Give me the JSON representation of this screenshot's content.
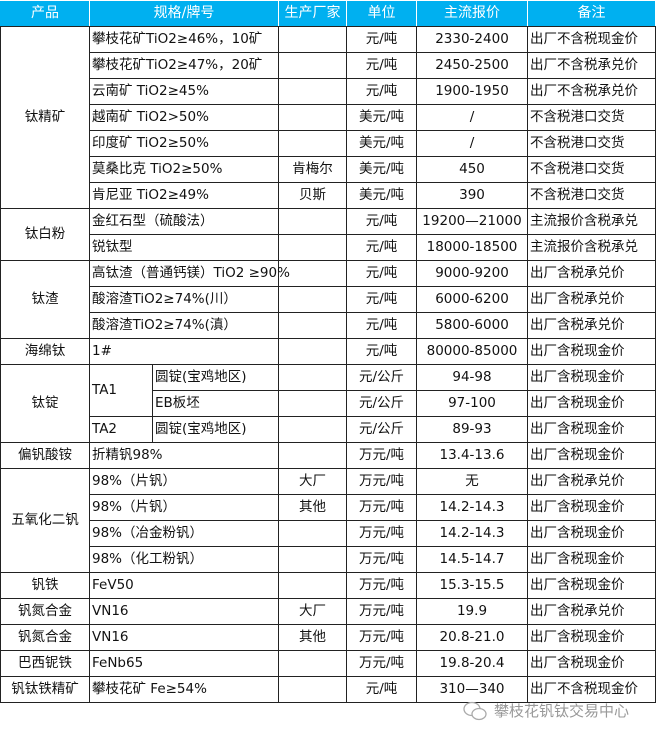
{
  "headers": [
    "产品",
    "规格/牌号",
    "生产厂家",
    "单位",
    "主流报价",
    "备注"
  ],
  "groups": [
    {
      "product": "钛精矿",
      "rows": [
        {
          "spec": "攀枝花矿TiO2≥46%，10矿",
          "maker": "",
          "unit": "元/吨",
          "price": "2330-2400",
          "note": "出厂不含税现金价"
        },
        {
          "spec": "攀枝花矿TiO2≥47%，20矿",
          "maker": "",
          "unit": "元/吨",
          "price": "2450-2500",
          "note": "出厂不含税承兑价"
        },
        {
          "spec": "云南矿 TiO2≥45%",
          "maker": "",
          "unit": "元/吨",
          "price": "1900-1950",
          "note": "出厂不含税承兑价"
        },
        {
          "spec": "越南矿 TiO2>50%",
          "maker": "",
          "unit": "美元/吨",
          "price": "/",
          "note": "不含税港口交货"
        },
        {
          "spec": "印度矿 TiO2≥50%",
          "maker": "",
          "unit": "美元/吨",
          "price": "/",
          "note": "不含税港口交货"
        },
        {
          "spec": "莫桑比克 TiO2≥50%",
          "maker": "肯梅尔",
          "unit": "美元/吨",
          "price": "450",
          "note": "不含税港口交货"
        },
        {
          "spec": "肯尼亚 TiO2≥49%",
          "maker": "贝斯",
          "unit": "美元/吨",
          "price": "390",
          "note": "不含税港口交货"
        }
      ]
    },
    {
      "product": "钛白粉",
      "rows": [
        {
          "spec": "金红石型（硫酸法）",
          "maker": "",
          "unit": "元/吨",
          "price": "19200—21000",
          "note": "主流报价含税承兑"
        },
        {
          "spec": "锐钛型",
          "maker": "",
          "unit": "元/吨",
          "price": "18000-18500",
          "note": "主流报价含税承兑"
        }
      ]
    },
    {
      "product": "钛渣",
      "rows": [
        {
          "spec": "高钛渣（普通钙镁）TiO2 ≥90%",
          "maker": "",
          "unit": "元/吨",
          "price": "9000-9200",
          "note": "出厂含税承兑价"
        },
        {
          "spec": "酸溶渣TiO2≥74%(川）",
          "maker": "",
          "unit": "元/吨",
          "price": "6000-6200",
          "note": "出厂含税承兑价"
        },
        {
          "spec": "酸溶渣TiO2≥74%(滇）",
          "maker": "",
          "unit": "元/吨",
          "price": "5800-6000",
          "note": "出厂含税承兑价"
        }
      ]
    },
    {
      "product": "海绵钛",
      "rows": [
        {
          "spec": "1#",
          "maker": "",
          "unit": "元/吨",
          "price": "80000-85000",
          "note": "出厂含税现金价"
        }
      ]
    },
    {
      "product": "钛锭",
      "subgroups": [
        {
          "grade": "TA1",
          "rows": [
            {
              "spec": "圆锭(宝鸡地区)",
              "maker": "",
              "unit": "元/公斤",
              "price": "94-98",
              "note": "出厂含税现金价"
            },
            {
              "spec": "EB板坯",
              "maker": "",
              "unit": "元/公斤",
              "price": "97-100",
              "note": "出厂含税现金价"
            }
          ]
        },
        {
          "grade": "TA2",
          "rows": [
            {
              "spec": "圆锭(宝鸡地区)",
              "maker": "",
              "unit": "元/公斤",
              "price": "89-93",
              "note": "出厂含税现金价"
            }
          ]
        }
      ]
    },
    {
      "product": "偏钒酸铵",
      "rows": [
        {
          "spec": "折精钒98%",
          "maker": "",
          "unit": "万元/吨",
          "price": "13.4-13.6",
          "note": "出厂含税现金价"
        }
      ]
    },
    {
      "product": "五氧化二钒",
      "rows": [
        {
          "spec": "98%（片钒）",
          "maker": "大厂",
          "unit": "万元/吨",
          "price": "无",
          "note": "出厂含税承兑价"
        },
        {
          "spec": "98%（片钒）",
          "maker": "其他",
          "unit": "万元/吨",
          "price": "14.2-14.3",
          "note": "出厂含税现金价"
        },
        {
          "spec": "98%（冶金粉钒）",
          "maker": "",
          "unit": "万元/吨",
          "price": "14.2-14.3",
          "note": "出厂含税现金价"
        },
        {
          "spec": "98%（化工粉钒）",
          "maker": "",
          "unit": "万元/吨",
          "price": "14.5-14.7",
          "note": "出厂含税现金价"
        }
      ]
    },
    {
      "product": "钒铁",
      "rows": [
        {
          "spec": "FeV50",
          "maker": "",
          "unit": "万元/吨",
          "price": "15.3-15.5",
          "note": "出厂含税现金价"
        }
      ]
    },
    {
      "product": "钒氮合金",
      "rows": [
        {
          "spec": "VN16",
          "maker": "大厂",
          "unit": "万元/吨",
          "price": "19.9",
          "note": "出厂含税承兑价"
        }
      ]
    },
    {
      "product": "钒氮合金",
      "rows": [
        {
          "spec": "VN16",
          "maker": "其他",
          "unit": "万元/吨",
          "price": "20.8-21.0",
          "note": "出厂含税现金价"
        }
      ]
    },
    {
      "product": "巴西铌铁",
      "rows": [
        {
          "spec": "FeNb65",
          "maker": "",
          "unit": "万元/吨",
          "price": "19.8-20.4",
          "note": "出厂含税现金价"
        }
      ]
    },
    {
      "product": "钒钛铁精矿",
      "rows": [
        {
          "spec": "攀枝花矿 Fe≥54%",
          "maker": "",
          "unit": "元/吨",
          "price": "310—340",
          "note": "出厂不含税现金价"
        }
      ]
    }
  ],
  "watermark": {
    "text": "攀枝花钒钛交易中心",
    "icon": "wechat-icon"
  },
  "colors": {
    "header_bg": "#00b0f0",
    "header_text": "#ffffff"
  }
}
